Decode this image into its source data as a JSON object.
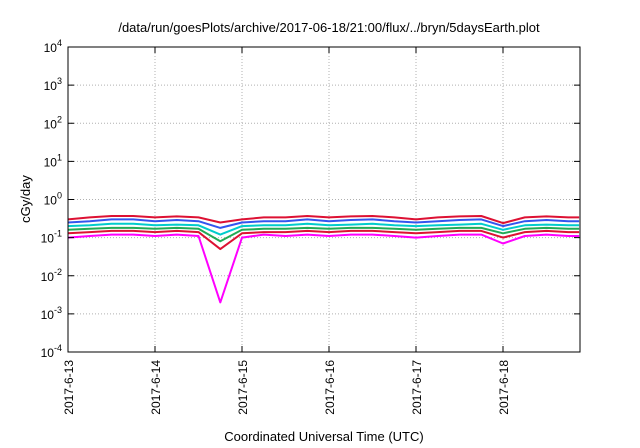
{
  "chart_data": {
    "type": "line",
    "title": "/data/run/goesPlots/archive/2017-06-18/21:00/flux/../bryn/5daysEarth.plot",
    "xlabel": "Coordinated Universal Time (UTC)",
    "ylabel": "cGy/day",
    "yscale": "log",
    "ylim": [
      0.0001,
      10000
    ],
    "xlim": [
      "2017-06-13 00:00",
      "2017-06-18 21:00"
    ],
    "grid": true,
    "legend": "none",
    "x_ticks": [
      "2017-6-13",
      "2017-6-14",
      "2017-6-15",
      "2017-6-16",
      "2017-6-17",
      "2017-6-18"
    ],
    "y_ticks": [
      {
        "base": "10",
        "exp": "-4"
      },
      {
        "base": "10",
        "exp": "-3"
      },
      {
        "base": "10",
        "exp": "-2"
      },
      {
        "base": "10",
        "exp": "-1"
      },
      {
        "base": "10",
        "exp": "0"
      },
      {
        "base": "10",
        "exp": "1"
      },
      {
        "base": "10",
        "exp": "2"
      },
      {
        "base": "10",
        "exp": "3"
      },
      {
        "base": "10",
        "exp": "4"
      }
    ],
    "x_days": [
      0,
      0.25,
      0.5,
      0.75,
      1,
      1.25,
      1.5,
      1.75,
      2,
      2.25,
      2.5,
      2.75,
      3,
      3.25,
      3.5,
      3.75,
      4,
      4.25,
      4.5,
      4.75,
      5,
      5.25,
      5.5,
      5.75,
      5.875
    ],
    "series": [
      {
        "color": "#ff00ff",
        "values": [
          0.1,
          0.11,
          0.12,
          0.12,
          0.11,
          0.12,
          0.11,
          0.002,
          0.1,
          0.12,
          0.11,
          0.12,
          0.11,
          0.12,
          0.12,
          0.11,
          0.1,
          0.11,
          0.12,
          0.12,
          0.07,
          0.11,
          0.12,
          0.11,
          0.11
        ]
      },
      {
        "color": "#dd1133",
        "values": [
          0.13,
          0.14,
          0.15,
          0.15,
          0.14,
          0.15,
          0.14,
          0.05,
          0.13,
          0.14,
          0.14,
          0.15,
          0.14,
          0.15,
          0.15,
          0.14,
          0.13,
          0.14,
          0.15,
          0.15,
          0.1,
          0.14,
          0.15,
          0.14,
          0.14
        ]
      },
      {
        "color": "#22aa55",
        "values": [
          0.16,
          0.17,
          0.18,
          0.18,
          0.17,
          0.18,
          0.17,
          0.08,
          0.16,
          0.17,
          0.17,
          0.18,
          0.17,
          0.18,
          0.18,
          0.17,
          0.16,
          0.17,
          0.18,
          0.18,
          0.13,
          0.17,
          0.18,
          0.17,
          0.17
        ]
      },
      {
        "color": "#00cccc",
        "values": [
          0.2,
          0.21,
          0.23,
          0.23,
          0.21,
          0.22,
          0.21,
          0.12,
          0.2,
          0.21,
          0.21,
          0.23,
          0.21,
          0.22,
          0.23,
          0.21,
          0.2,
          0.21,
          0.22,
          0.23,
          0.16,
          0.21,
          0.22,
          0.21,
          0.21
        ]
      },
      {
        "color": "#3355ee",
        "values": [
          0.25,
          0.27,
          0.3,
          0.3,
          0.27,
          0.29,
          0.27,
          0.18,
          0.25,
          0.27,
          0.27,
          0.3,
          0.27,
          0.29,
          0.3,
          0.27,
          0.25,
          0.27,
          0.29,
          0.3,
          0.2,
          0.27,
          0.29,
          0.27,
          0.27
        ]
      },
      {
        "color": "#dd1133",
        "values": [
          0.3,
          0.34,
          0.37,
          0.37,
          0.34,
          0.36,
          0.34,
          0.25,
          0.3,
          0.34,
          0.34,
          0.37,
          0.34,
          0.36,
          0.37,
          0.34,
          0.3,
          0.34,
          0.36,
          0.37,
          0.24,
          0.34,
          0.36,
          0.34,
          0.34
        ]
      }
    ]
  }
}
